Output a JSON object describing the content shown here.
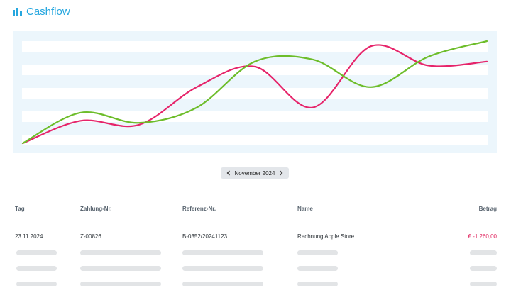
{
  "header": {
    "title": "Cashflow",
    "icon": "bar-chart-icon",
    "accent_color": "#26a7df"
  },
  "chart_data": {
    "type": "line",
    "grid": true,
    "series": [
      {
        "color": "#e6246a",
        "values": [
          0,
          0.22,
          0.18,
          0.55,
          0.75,
          0.35,
          0.95,
          0.76,
          0.8
        ]
      },
      {
        "color": "#6dbd2a",
        "values": [
          0,
          0.3,
          0.2,
          0.35,
          0.8,
          0.82,
          0.55,
          0.85,
          1.0
        ]
      }
    ]
  },
  "month_selector": {
    "label": "November 2024",
    "prev_icon": "chevron-left-icon",
    "next_icon": "chevron-right-icon"
  },
  "table": {
    "columns": [
      "Tag",
      "Zahlung-Nr.",
      "Referenz-Nr.",
      "Name",
      "Betrag"
    ],
    "rows": [
      {
        "tag": "23.11.2024",
        "zahlung_nr": "Z-00826",
        "referenz_nr": "B-0352/20241123",
        "name": "Rechnung Apple Store",
        "betrag": "€ -1.260,00"
      }
    ],
    "negative_color": "#e0245e"
  }
}
